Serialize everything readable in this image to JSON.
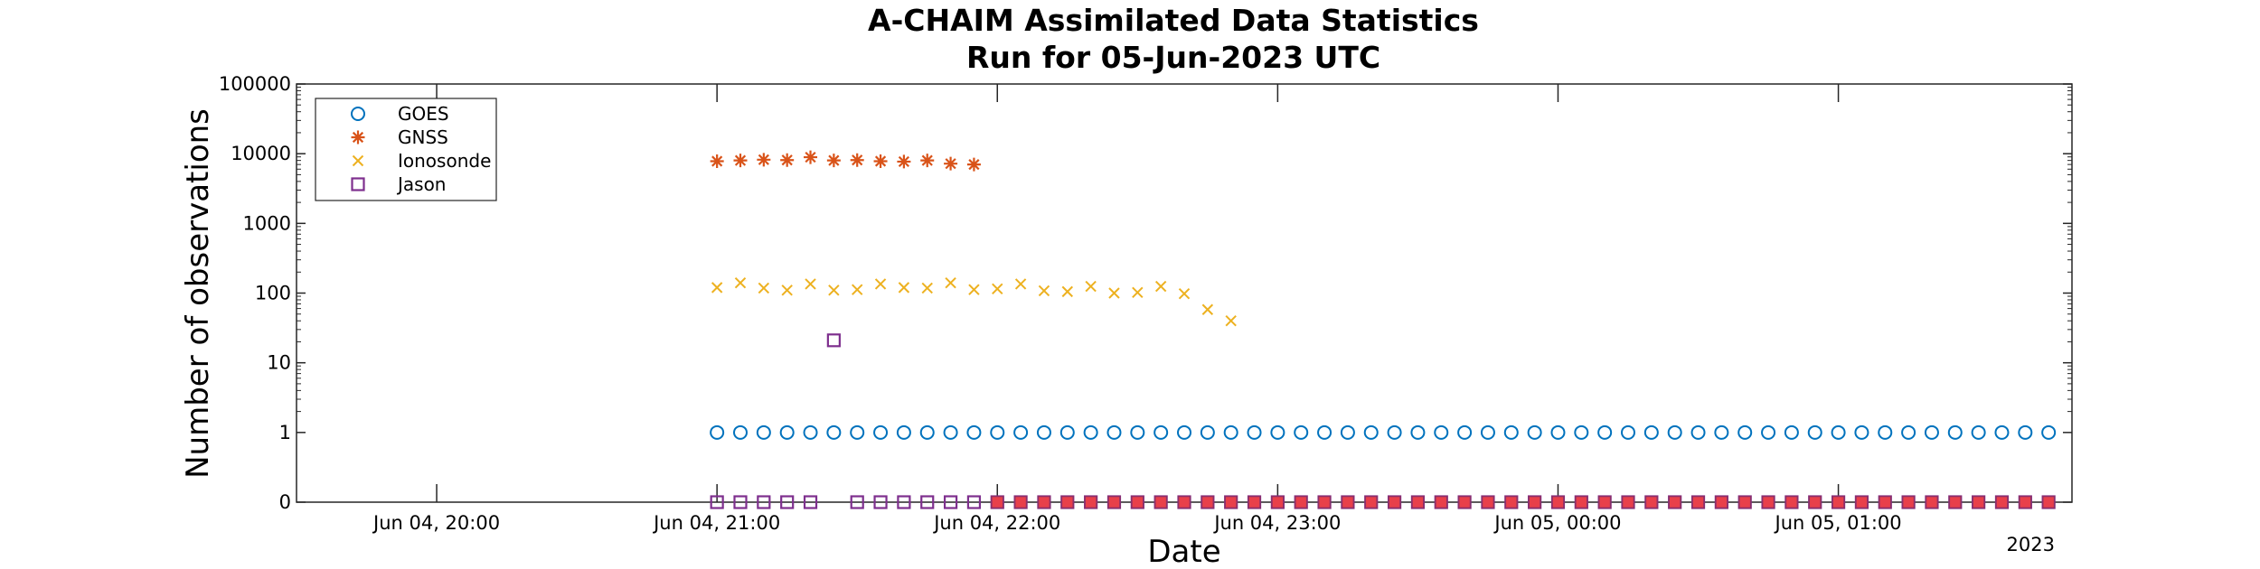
{
  "chart_data": {
    "type": "scatter",
    "title": "A-CHAIM Assimilated Data Statistics",
    "subtitle": "Run for 05-Jun-2023 UTC",
    "xlabel": "Date",
    "ylabel": "Number of observations",
    "y_scale": "log",
    "year_label": "2023",
    "x_range": [
      "2023-06-04 19:30",
      "2023-06-05 01:50"
    ],
    "x_ticks": [
      {
        "t": "2023-06-04 20:00",
        "label": "Jun 04, 20:00"
      },
      {
        "t": "2023-06-04 21:00",
        "label": "Jun 04, 21:00"
      },
      {
        "t": "2023-06-04 22:00",
        "label": "Jun 04, 22:00"
      },
      {
        "t": "2023-06-04 23:00",
        "label": "Jun 04, 23:00"
      },
      {
        "t": "2023-06-05 00:00",
        "label": "Jun 05, 00:00"
      },
      {
        "t": "2023-06-05 01:00",
        "label": "Jun 05, 01:00"
      }
    ],
    "y_ticks": [
      {
        "v": 0,
        "label": "0"
      },
      {
        "v": 1,
        "label": "1"
      },
      {
        "v": 10,
        "label": "10"
      },
      {
        "v": 100,
        "label": "100"
      },
      {
        "v": 1000,
        "label": "1000"
      },
      {
        "v": 10000,
        "label": "10000"
      },
      {
        "v": 100000,
        "label": "100000"
      }
    ],
    "legend_position": "top-left",
    "grid": false,
    "series": [
      {
        "name": "GOES",
        "marker": "circle",
        "color": "#0072bd",
        "points": [
          [
            "2023-06-04 21:00",
            1
          ],
          [
            "2023-06-04 21:05",
            1
          ],
          [
            "2023-06-04 21:10",
            1
          ],
          [
            "2023-06-04 21:15",
            1
          ],
          [
            "2023-06-04 21:20",
            1
          ],
          [
            "2023-06-04 21:25",
            1
          ],
          [
            "2023-06-04 21:30",
            1
          ],
          [
            "2023-06-04 21:35",
            1
          ],
          [
            "2023-06-04 21:40",
            1
          ],
          [
            "2023-06-04 21:45",
            1
          ],
          [
            "2023-06-04 21:50",
            1
          ],
          [
            "2023-06-04 21:55",
            1
          ],
          [
            "2023-06-04 22:00",
            1
          ],
          [
            "2023-06-04 22:05",
            1
          ],
          [
            "2023-06-04 22:10",
            1
          ],
          [
            "2023-06-04 22:15",
            1
          ],
          [
            "2023-06-04 22:20",
            1
          ],
          [
            "2023-06-04 22:25",
            1
          ],
          [
            "2023-06-04 22:30",
            1
          ],
          [
            "2023-06-04 22:35",
            1
          ],
          [
            "2023-06-04 22:40",
            1
          ],
          [
            "2023-06-04 22:45",
            1
          ],
          [
            "2023-06-04 22:50",
            1
          ],
          [
            "2023-06-04 22:55",
            1
          ],
          [
            "2023-06-04 23:00",
            1
          ],
          [
            "2023-06-04 23:05",
            1
          ],
          [
            "2023-06-04 23:10",
            1
          ],
          [
            "2023-06-04 23:15",
            1
          ],
          [
            "2023-06-04 23:20",
            1
          ],
          [
            "2023-06-04 23:25",
            1
          ],
          [
            "2023-06-04 23:30",
            1
          ],
          [
            "2023-06-04 23:35",
            1
          ],
          [
            "2023-06-04 23:40",
            1
          ],
          [
            "2023-06-04 23:45",
            1
          ],
          [
            "2023-06-04 23:50",
            1
          ],
          [
            "2023-06-04 23:55",
            1
          ],
          [
            "2023-06-05 00:00",
            1
          ],
          [
            "2023-06-05 00:05",
            1
          ],
          [
            "2023-06-05 00:10",
            1
          ],
          [
            "2023-06-05 00:15",
            1
          ],
          [
            "2023-06-05 00:20",
            1
          ],
          [
            "2023-06-05 00:25",
            1
          ],
          [
            "2023-06-05 00:30",
            1
          ],
          [
            "2023-06-05 00:35",
            1
          ],
          [
            "2023-06-05 00:40",
            1
          ],
          [
            "2023-06-05 00:45",
            1
          ],
          [
            "2023-06-05 00:50",
            1
          ],
          [
            "2023-06-05 00:55",
            1
          ],
          [
            "2023-06-05 01:00",
            1
          ],
          [
            "2023-06-05 01:05",
            1
          ],
          [
            "2023-06-05 01:10",
            1
          ],
          [
            "2023-06-05 01:15",
            1
          ],
          [
            "2023-06-05 01:20",
            1
          ],
          [
            "2023-06-05 01:25",
            1
          ],
          [
            "2023-06-05 01:30",
            1
          ],
          [
            "2023-06-05 01:35",
            1
          ],
          [
            "2023-06-05 01:40",
            1
          ],
          [
            "2023-06-05 01:45",
            1
          ]
        ]
      },
      {
        "name": "GNSS",
        "marker": "asterisk",
        "color": "#d95319",
        "points": [
          [
            "2023-06-04 21:00",
            7800
          ],
          [
            "2023-06-04 21:05",
            8000
          ],
          [
            "2023-06-04 21:10",
            8200
          ],
          [
            "2023-06-04 21:15",
            8100
          ],
          [
            "2023-06-04 21:20",
            8900
          ],
          [
            "2023-06-04 21:25",
            8000
          ],
          [
            "2023-06-04 21:30",
            8100
          ],
          [
            "2023-06-04 21:35",
            7800
          ],
          [
            "2023-06-04 21:40",
            7700
          ],
          [
            "2023-06-04 21:45",
            8000
          ],
          [
            "2023-06-04 21:50",
            7200
          ],
          [
            "2023-06-04 21:55",
            7000
          ]
        ]
      },
      {
        "name": "Ionosonde",
        "marker": "x",
        "color": "#edb120",
        "points": [
          [
            "2023-06-04 21:00",
            120
          ],
          [
            "2023-06-04 21:05",
            140
          ],
          [
            "2023-06-04 21:10",
            118
          ],
          [
            "2023-06-04 21:15",
            110
          ],
          [
            "2023-06-04 21:20",
            135
          ],
          [
            "2023-06-04 21:25",
            110
          ],
          [
            "2023-06-04 21:30",
            112
          ],
          [
            "2023-06-04 21:35",
            135
          ],
          [
            "2023-06-04 21:40",
            120
          ],
          [
            "2023-06-04 21:45",
            118
          ],
          [
            "2023-06-04 21:50",
            140
          ],
          [
            "2023-06-04 21:55",
            112
          ],
          [
            "2023-06-04 22:00",
            115
          ],
          [
            "2023-06-04 22:05",
            135
          ],
          [
            "2023-06-04 22:10",
            108
          ],
          [
            "2023-06-04 22:15",
            105
          ],
          [
            "2023-06-04 22:20",
            125
          ],
          [
            "2023-06-04 22:25",
            100
          ],
          [
            "2023-06-04 22:30",
            102
          ],
          [
            "2023-06-04 22:35",
            125
          ],
          [
            "2023-06-04 22:40",
            98
          ],
          [
            "2023-06-04 22:45",
            58
          ],
          [
            "2023-06-04 22:50",
            40
          ]
        ]
      },
      {
        "name": "Jason",
        "marker": "square",
        "color": "#7e2f8e",
        "points": [
          [
            "2023-06-04 21:00",
            0
          ],
          [
            "2023-06-04 21:05",
            0
          ],
          [
            "2023-06-04 21:10",
            0
          ],
          [
            "2023-06-04 21:15",
            0
          ],
          [
            "2023-06-04 21:20",
            0
          ],
          [
            "2023-06-04 21:25",
            21
          ],
          [
            "2023-06-04 21:30",
            0
          ],
          [
            "2023-06-04 21:35",
            0
          ],
          [
            "2023-06-04 21:40",
            0
          ],
          [
            "2023-06-04 21:45",
            0
          ],
          [
            "2023-06-04 21:50",
            0
          ],
          [
            "2023-06-04 21:55",
            0
          ],
          [
            "2023-06-04 22:00",
            0
          ],
          [
            "2023-06-04 22:05",
            0
          ],
          [
            "2023-06-04 22:10",
            0
          ],
          [
            "2023-06-04 22:15",
            0
          ],
          [
            "2023-06-04 22:20",
            0
          ],
          [
            "2023-06-04 22:25",
            0
          ],
          [
            "2023-06-04 22:30",
            0
          ],
          [
            "2023-06-04 22:35",
            0
          ],
          [
            "2023-06-04 22:40",
            0
          ],
          [
            "2023-06-04 22:45",
            0
          ],
          [
            "2023-06-04 22:50",
            0
          ],
          [
            "2023-06-04 22:55",
            0
          ],
          [
            "2023-06-04 23:00",
            0
          ],
          [
            "2023-06-04 23:05",
            0
          ],
          [
            "2023-06-04 23:10",
            0
          ],
          [
            "2023-06-04 23:15",
            0
          ],
          [
            "2023-06-04 23:20",
            0
          ],
          [
            "2023-06-04 23:25",
            0
          ],
          [
            "2023-06-04 23:30",
            0
          ],
          [
            "2023-06-04 23:35",
            0
          ],
          [
            "2023-06-04 23:40",
            0
          ],
          [
            "2023-06-04 23:45",
            0
          ],
          [
            "2023-06-04 23:50",
            0
          ],
          [
            "2023-06-04 23:55",
            0
          ],
          [
            "2023-06-05 00:00",
            0
          ],
          [
            "2023-06-05 00:05",
            0
          ],
          [
            "2023-06-05 00:10",
            0
          ],
          [
            "2023-06-05 00:15",
            0
          ],
          [
            "2023-06-05 00:20",
            0
          ],
          [
            "2023-06-05 00:25",
            0
          ],
          [
            "2023-06-05 00:30",
            0
          ],
          [
            "2023-06-05 00:35",
            0
          ],
          [
            "2023-06-05 00:40",
            0
          ],
          [
            "2023-06-05 00:45",
            0
          ],
          [
            "2023-06-05 00:50",
            0
          ],
          [
            "2023-06-05 00:55",
            0
          ],
          [
            "2023-06-05 01:00",
            0
          ],
          [
            "2023-06-05 01:05",
            0
          ],
          [
            "2023-06-05 01:10",
            0
          ],
          [
            "2023-06-05 01:15",
            0
          ],
          [
            "2023-06-05 01:20",
            0
          ],
          [
            "2023-06-05 01:25",
            0
          ],
          [
            "2023-06-05 01:30",
            0
          ],
          [
            "2023-06-05 01:35",
            0
          ],
          [
            "2023-06-05 01:40",
            0
          ],
          [
            "2023-06-05 01:45",
            0
          ]
        ]
      },
      {
        "name": "",
        "marker": "square-filled",
        "color": "#e8404a",
        "points": [
          [
            "2023-06-04 22:00",
            0
          ],
          [
            "2023-06-04 22:05",
            0
          ],
          [
            "2023-06-04 22:10",
            0
          ],
          [
            "2023-06-04 22:15",
            0
          ],
          [
            "2023-06-04 22:20",
            0
          ],
          [
            "2023-06-04 22:25",
            0
          ],
          [
            "2023-06-04 22:30",
            0
          ],
          [
            "2023-06-04 22:35",
            0
          ],
          [
            "2023-06-04 22:40",
            0
          ],
          [
            "2023-06-04 22:45",
            0
          ],
          [
            "2023-06-04 22:50",
            0
          ],
          [
            "2023-06-04 22:55",
            0
          ],
          [
            "2023-06-04 23:00",
            0
          ],
          [
            "2023-06-04 23:05",
            0
          ],
          [
            "2023-06-04 23:10",
            0
          ],
          [
            "2023-06-04 23:15",
            0
          ],
          [
            "2023-06-04 23:20",
            0
          ],
          [
            "2023-06-04 23:25",
            0
          ],
          [
            "2023-06-04 23:30",
            0
          ],
          [
            "2023-06-04 23:35",
            0
          ],
          [
            "2023-06-04 23:40",
            0
          ],
          [
            "2023-06-04 23:45",
            0
          ],
          [
            "2023-06-04 23:50",
            0
          ],
          [
            "2023-06-04 23:55",
            0
          ],
          [
            "2023-06-05 00:00",
            0
          ],
          [
            "2023-06-05 00:05",
            0
          ],
          [
            "2023-06-05 00:10",
            0
          ],
          [
            "2023-06-05 00:15",
            0
          ],
          [
            "2023-06-05 00:20",
            0
          ],
          [
            "2023-06-05 00:25",
            0
          ],
          [
            "2023-06-05 00:30",
            0
          ],
          [
            "2023-06-05 00:35",
            0
          ],
          [
            "2023-06-05 00:40",
            0
          ],
          [
            "2023-06-05 00:45",
            0
          ],
          [
            "2023-06-05 00:50",
            0
          ],
          [
            "2023-06-05 00:55",
            0
          ],
          [
            "2023-06-05 01:00",
            0
          ],
          [
            "2023-06-05 01:05",
            0
          ],
          [
            "2023-06-05 01:10",
            0
          ],
          [
            "2023-06-05 01:15",
            0
          ],
          [
            "2023-06-05 01:20",
            0
          ],
          [
            "2023-06-05 01:25",
            0
          ],
          [
            "2023-06-05 01:30",
            0
          ],
          [
            "2023-06-05 01:35",
            0
          ],
          [
            "2023-06-05 01:40",
            0
          ],
          [
            "2023-06-05 01:45",
            0
          ]
        ]
      }
    ]
  }
}
